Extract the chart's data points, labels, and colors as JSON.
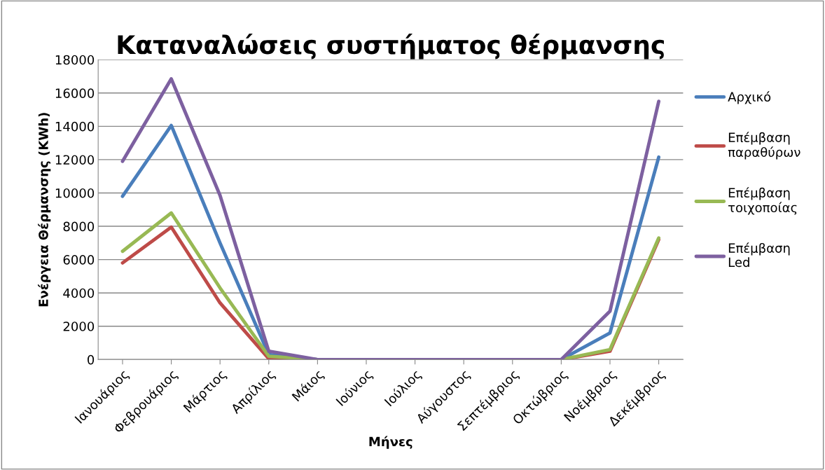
{
  "chart_data": {
    "type": "line",
    "title": "Καταναλώσεις συστήματος θέρμανσης",
    "xlabel": "Μήνες",
    "ylabel": "Ενέργεια Θέρμανσης (KWh)",
    "categories": [
      "Ιανουάριος",
      "Φεβρουάριος",
      "Μάρτιος",
      "Απρίλιος",
      "Μάιος",
      "Ιούνιος",
      "Ιούλιος",
      "Αύγουστος",
      "Σεπτέμβριος",
      "Οκτώβριος",
      "Νοέμβριος",
      "Δεκέμβριος"
    ],
    "series": [
      {
        "name": "Αρχικό",
        "color": "#4a7ebb",
        "values": [
          9800,
          14050,
          7000,
          300,
          0,
          0,
          0,
          0,
          0,
          0,
          1600,
          12150
        ]
      },
      {
        "name": "Επέμβαση παραθύρων",
        "color": "#be4b48",
        "values": [
          5800,
          7950,
          3400,
          50,
          0,
          0,
          0,
          0,
          0,
          0,
          500,
          7200
        ]
      },
      {
        "name": "Επέμβαση τοιχοποίας",
        "color": "#98b954",
        "values": [
          6500,
          8800,
          4300,
          200,
          0,
          0,
          0,
          0,
          0,
          0,
          600,
          7300
        ]
      },
      {
        "name": "Επέμβαση Led",
        "color": "#7d60a0",
        "values": [
          11900,
          16850,
          9850,
          500,
          0,
          0,
          0,
          0,
          0,
          0,
          2900,
          15500
        ]
      }
    ],
    "ylim": [
      0,
      18000
    ],
    "yticks": [
      0,
      2000,
      4000,
      6000,
      8000,
      10000,
      12000,
      14000,
      16000,
      18000
    ],
    "grid": "y",
    "legend": "right",
    "marker": "none",
    "line_style": "solid"
  }
}
